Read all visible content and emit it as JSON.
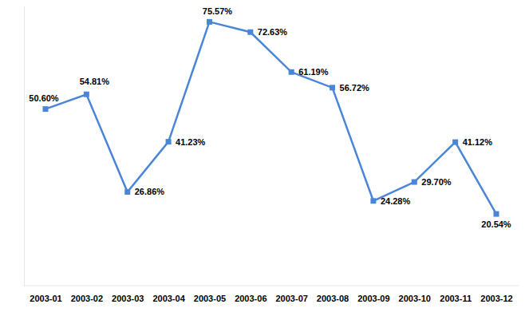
{
  "chart_data": {
    "type": "line",
    "categories": [
      "2003-01",
      "2003-02",
      "2003-03",
      "2003-04",
      "2003-05",
      "2003-06",
      "2003-07",
      "2003-08",
      "2003-09",
      "2003-10",
      "2003-11",
      "2003-12"
    ],
    "values": [
      50.6,
      54.81,
      26.86,
      41.23,
      75.57,
      72.63,
      61.19,
      56.72,
      24.28,
      29.7,
      41.12,
      20.54
    ],
    "value_labels": [
      "50.60%",
      "54.81%",
      "26.86%",
      "41.23%",
      "75.57%",
      "72.63%",
      "61.19%",
      "56.72%",
      "24.28%",
      "29.70%",
      "41.12%",
      "20.54%"
    ],
    "color": "#4a86d8",
    "marker": "square",
    "line_style": "solid",
    "ylim": [
      0,
      80
    ],
    "data_labels": true,
    "tick_labels": "x",
    "grid": false
  }
}
